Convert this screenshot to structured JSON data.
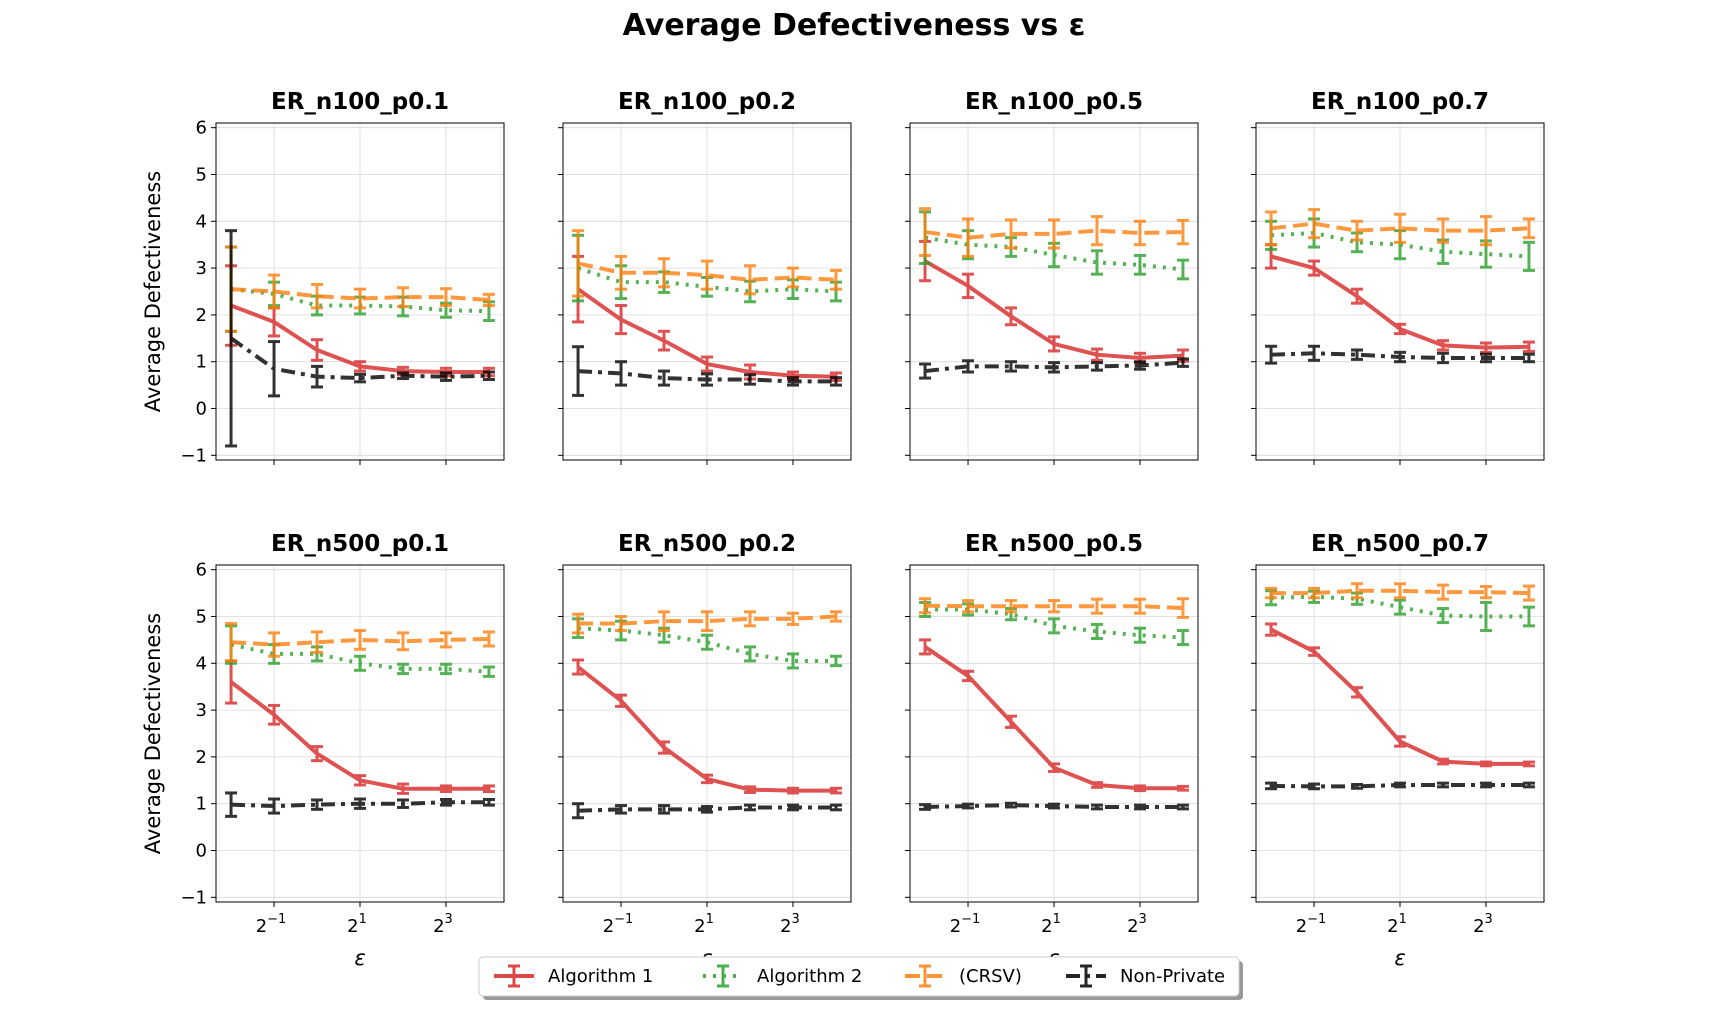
{
  "chart_data": {
    "type": "line",
    "title": "Average Defectiveness vs ε",
    "xlabel": "ε",
    "ylabel": "Average Defectiveness",
    "xscale": "log2",
    "x": [
      0.25,
      0.5,
      1,
      2,
      4,
      8,
      16
    ],
    "xticks": [
      0.5,
      2,
      8
    ],
    "xticklabels": [
      {
        "base": "2",
        "exp": "−1"
      },
      {
        "base": "2",
        "exp": "1"
      },
      {
        "base": "2",
        "exp": "3"
      }
    ],
    "ylim": [
      -1.1,
      6.1
    ],
    "yticks": [
      -1,
      0,
      1,
      2,
      3,
      4,
      5,
      6
    ],
    "yticklabels": [
      "−1",
      "0",
      "1",
      "2",
      "3",
      "4",
      "5",
      "6"
    ],
    "grid": true,
    "legend": {
      "position": "bottom-center",
      "entries": [
        "Algorithm 1",
        "Algorithm 2",
        "(CRSV)",
        "Non-Private"
      ]
    },
    "series_styles": [
      {
        "name": "Algorithm 1",
        "color": "#d62728",
        "dash": "solid"
      },
      {
        "name": "Algorithm 2",
        "color": "#2ca02c",
        "dash": "dotted"
      },
      {
        "name": "(CRSV)",
        "color": "#ff7f0e",
        "dash": "dashed"
      },
      {
        "name": "Non-Private",
        "color": "#000000",
        "dash": "dashdot"
      }
    ],
    "panels": [
      {
        "title": "ER_n100_p0.1",
        "series": [
          {
            "name": "Algorithm 1",
            "values": [
              2.2,
              1.85,
              1.25,
              0.9,
              0.8,
              0.78,
              0.78
            ],
            "errors": [
              0.85,
              0.3,
              0.22,
              0.1,
              0.08,
              0.08,
              0.08
            ]
          },
          {
            "name": "Algorithm 2",
            "values": [
              2.55,
              2.45,
              2.2,
              2.2,
              2.18,
              2.1,
              2.08
            ],
            "errors": [
              0.9,
              0.25,
              0.2,
              0.18,
              0.2,
              0.15,
              0.2
            ]
          },
          {
            "name": "(CRSV)",
            "values": [
              2.55,
              2.5,
              2.4,
              2.35,
              2.38,
              2.38,
              2.32
            ],
            "errors": [
              0.9,
              0.35,
              0.25,
              0.2,
              0.2,
              0.18,
              0.12
            ]
          },
          {
            "name": "Non-Private",
            "values": [
              1.5,
              0.85,
              0.68,
              0.65,
              0.7,
              0.68,
              0.7
            ],
            "errors": [
              2.3,
              0.58,
              0.22,
              0.08,
              0.06,
              0.08,
              0.08
            ]
          }
        ]
      },
      {
        "title": "ER_n100_p0.2",
        "series": [
          {
            "name": "Algorithm 1",
            "values": [
              2.55,
              1.9,
              1.45,
              0.95,
              0.78,
              0.7,
              0.68
            ],
            "errors": [
              0.7,
              0.3,
              0.2,
              0.15,
              0.15,
              0.08,
              0.08
            ]
          },
          {
            "name": "Algorithm 2",
            "values": [
              3.0,
              2.7,
              2.7,
              2.6,
              2.5,
              2.55,
              2.5
            ],
            "errors": [
              0.7,
              0.35,
              0.22,
              0.2,
              0.22,
              0.2,
              0.2
            ]
          },
          {
            "name": "(CRSV)",
            "values": [
              3.1,
              2.9,
              2.9,
              2.85,
              2.75,
              2.8,
              2.75
            ],
            "errors": [
              0.7,
              0.35,
              0.3,
              0.3,
              0.3,
              0.2,
              0.2
            ]
          },
          {
            "name": "Non-Private",
            "values": [
              0.8,
              0.75,
              0.65,
              0.62,
              0.62,
              0.58,
              0.58
            ],
            "errors": [
              0.52,
              0.25,
              0.15,
              0.12,
              0.1,
              0.08,
              0.08
            ]
          }
        ]
      },
      {
        "title": "ER_n100_p0.5",
        "series": [
          {
            "name": "Algorithm 1",
            "values": [
              3.15,
              2.62,
              1.97,
              1.38,
              1.15,
              1.08,
              1.13
            ],
            "errors": [
              0.42,
              0.25,
              0.18,
              0.15,
              0.12,
              0.1,
              0.12
            ]
          },
          {
            "name": "Algorithm 2",
            "values": [
              3.65,
              3.5,
              3.45,
              3.28,
              3.12,
              3.07,
              2.97
            ],
            "errors": [
              0.55,
              0.3,
              0.2,
              0.25,
              0.25,
              0.2,
              0.2
            ]
          },
          {
            "name": "(CRSV)",
            "values": [
              3.77,
              3.65,
              3.73,
              3.73,
              3.8,
              3.75,
              3.77
            ],
            "errors": [
              0.5,
              0.4,
              0.3,
              0.3,
              0.3,
              0.25,
              0.25
            ]
          },
          {
            "name": "Non-Private",
            "values": [
              0.8,
              0.9,
              0.9,
              0.88,
              0.9,
              0.92,
              0.98
            ],
            "errors": [
              0.15,
              0.12,
              0.1,
              0.1,
              0.08,
              0.08,
              0.08
            ]
          }
        ]
      },
      {
        "title": "ER_n100_p0.7",
        "series": [
          {
            "name": "Algorithm 1",
            "values": [
              3.25,
              3.0,
              2.4,
              1.7,
              1.35,
              1.3,
              1.32
            ],
            "errors": [
              0.25,
              0.15,
              0.15,
              0.1,
              0.1,
              0.1,
              0.1
            ]
          },
          {
            "name": "Algorithm 2",
            "values": [
              3.7,
              3.75,
              3.55,
              3.5,
              3.35,
              3.3,
              3.25
            ],
            "errors": [
              0.3,
              0.3,
              0.2,
              0.3,
              0.25,
              0.28,
              0.3
            ]
          },
          {
            "name": "(CRSV)",
            "values": [
              3.85,
              3.95,
              3.8,
              3.85,
              3.8,
              3.8,
              3.85
            ],
            "errors": [
              0.35,
              0.3,
              0.2,
              0.3,
              0.25,
              0.3,
              0.2
            ]
          },
          {
            "name": "Non-Private",
            "values": [
              1.15,
              1.18,
              1.15,
              1.1,
              1.08,
              1.08,
              1.08
            ],
            "errors": [
              0.18,
              0.15,
              0.1,
              0.1,
              0.1,
              0.08,
              0.08
            ]
          }
        ]
      },
      {
        "title": "ER_n500_p0.1",
        "series": [
          {
            "name": "Algorithm 1",
            "values": [
              3.6,
              2.9,
              2.07,
              1.5,
              1.32,
              1.32,
              1.32
            ],
            "errors": [
              0.45,
              0.2,
              0.15,
              0.1,
              0.1,
              0.06,
              0.06
            ]
          },
          {
            "name": "Algorithm 2",
            "values": [
              4.4,
              4.2,
              4.2,
              4.0,
              3.88,
              3.88,
              3.82
            ],
            "errors": [
              0.4,
              0.2,
              0.15,
              0.15,
              0.1,
              0.1,
              0.1
            ]
          },
          {
            "name": "(CRSV)",
            "values": [
              4.45,
              4.4,
              4.45,
              4.5,
              4.47,
              4.5,
              4.52
            ],
            "errors": [
              0.4,
              0.25,
              0.22,
              0.2,
              0.18,
              0.15,
              0.15
            ]
          },
          {
            "name": "Non-Private",
            "values": [
              0.98,
              0.95,
              0.98,
              1.0,
              1.0,
              1.03,
              1.03
            ],
            "errors": [
              0.25,
              0.15,
              0.1,
              0.1,
              0.08,
              0.06,
              0.06
            ]
          }
        ]
      },
      {
        "title": "ER_n500_p0.2",
        "series": [
          {
            "name": "Algorithm 1",
            "values": [
              3.92,
              3.2,
              2.2,
              1.53,
              1.3,
              1.28,
              1.28
            ],
            "errors": [
              0.15,
              0.12,
              0.12,
              0.08,
              0.06,
              0.05,
              0.05
            ]
          },
          {
            "name": "Algorithm 2",
            "values": [
              4.75,
              4.7,
              4.6,
              4.45,
              4.2,
              4.05,
              4.05
            ],
            "errors": [
              0.2,
              0.2,
              0.15,
              0.15,
              0.15,
              0.15,
              0.1
            ]
          },
          {
            "name": "(CRSV)",
            "values": [
              4.85,
              4.85,
              4.9,
              4.9,
              4.95,
              4.95,
              5.0
            ],
            "errors": [
              0.2,
              0.15,
              0.2,
              0.2,
              0.15,
              0.12,
              0.1
            ]
          },
          {
            "name": "Non-Private",
            "values": [
              0.85,
              0.88,
              0.88,
              0.88,
              0.92,
              0.92,
              0.92
            ],
            "errors": [
              0.15,
              0.08,
              0.08,
              0.06,
              0.05,
              0.05,
              0.05
            ]
          }
        ]
      },
      {
        "title": "ER_n500_p0.5",
        "series": [
          {
            "name": "Algorithm 1",
            "values": [
              4.35,
              3.73,
              2.75,
              1.77,
              1.4,
              1.33,
              1.33
            ],
            "errors": [
              0.15,
              0.1,
              0.12,
              0.08,
              0.05,
              0.05,
              0.04
            ]
          },
          {
            "name": "Algorithm 2",
            "values": [
              5.15,
              5.15,
              5.05,
              4.8,
              4.68,
              4.6,
              4.55
            ],
            "errors": [
              0.15,
              0.12,
              0.12,
              0.15,
              0.15,
              0.15,
              0.15
            ]
          },
          {
            "name": "(CRSV)",
            "values": [
              5.23,
              5.22,
              5.22,
              5.22,
              5.22,
              5.22,
              5.18
            ],
            "errors": [
              0.15,
              0.12,
              0.12,
              0.12,
              0.15,
              0.15,
              0.2
            ]
          },
          {
            "name": "Non-Private",
            "values": [
              0.93,
              0.95,
              0.97,
              0.95,
              0.93,
              0.93,
              0.93
            ],
            "errors": [
              0.05,
              0.04,
              0.04,
              0.04,
              0.04,
              0.04,
              0.04
            ]
          }
        ]
      },
      {
        "title": "ER_n500_p0.7",
        "series": [
          {
            "name": "Algorithm 1",
            "values": [
              4.72,
              4.25,
              3.38,
              2.33,
              1.9,
              1.85,
              1.85
            ],
            "errors": [
              0.12,
              0.08,
              0.1,
              0.1,
              0.05,
              0.04,
              0.04
            ]
          },
          {
            "name": "Algorithm 2",
            "values": [
              5.4,
              5.42,
              5.38,
              5.2,
              5.02,
              5.0,
              5.0
            ],
            "errors": [
              0.15,
              0.12,
              0.12,
              0.15,
              0.15,
              0.3,
              0.2
            ]
          },
          {
            "name": "(CRSV)",
            "values": [
              5.5,
              5.5,
              5.55,
              5.55,
              5.52,
              5.52,
              5.5
            ],
            "errors": [
              0.1,
              0.1,
              0.15,
              0.15,
              0.15,
              0.12,
              0.15
            ]
          },
          {
            "name": "Non-Private",
            "values": [
              1.38,
              1.37,
              1.37,
              1.4,
              1.4,
              1.4,
              1.4
            ],
            "errors": [
              0.06,
              0.05,
              0.04,
              0.04,
              0.04,
              0.04,
              0.04
            ]
          }
        ]
      }
    ]
  }
}
